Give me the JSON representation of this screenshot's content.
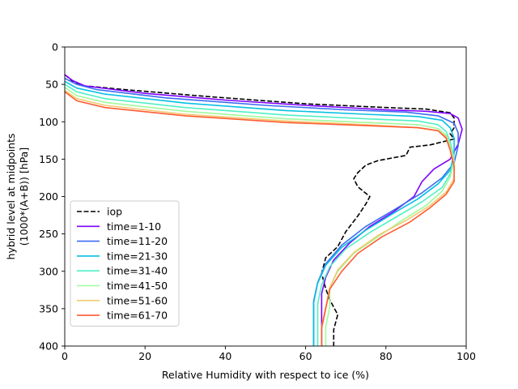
{
  "chart_data": {
    "type": "line",
    "title": "",
    "xlabel": "Relative Humidity with respect to ice (%)",
    "ylabel_line1": "hybrid level at midpoints",
    "ylabel_line2": "(1000*(A+B)) [hPa]",
    "xlim": [
      0,
      100
    ],
    "ylim": [
      400,
      0
    ],
    "y_inverted": true,
    "xticks": [
      0,
      20,
      40,
      60,
      80,
      100
    ],
    "yticks": [
      0,
      50,
      100,
      150,
      200,
      250,
      300,
      350,
      400
    ],
    "grid": false,
    "legend_position": "lower-left",
    "series": [
      {
        "name": "iop",
        "color": "#000000",
        "dash": true,
        "points": [
          [
            0,
            37
          ],
          [
            2,
            46
          ],
          [
            5,
            52
          ],
          [
            15,
            57
          ],
          [
            35,
            66
          ],
          [
            60,
            76
          ],
          [
            80,
            81
          ],
          [
            90,
            83
          ],
          [
            96,
            88
          ],
          [
            97,
            95
          ],
          [
            97,
            108
          ],
          [
            96,
            116
          ],
          [
            97,
            123
          ],
          [
            91,
            131
          ],
          [
            86,
            134
          ],
          [
            85,
            145
          ],
          [
            78,
            152
          ],
          [
            75,
            158
          ],
          [
            73,
            168
          ],
          [
            72,
            176
          ],
          [
            73,
            187
          ],
          [
            76,
            200
          ],
          [
            75,
            210
          ],
          [
            73,
            226
          ],
          [
            70,
            247
          ],
          [
            68,
            267
          ],
          [
            65,
            282
          ],
          [
            64,
            303
          ],
          [
            65,
            323
          ],
          [
            66,
            338
          ],
          [
            68,
            358
          ],
          [
            67,
            378
          ],
          [
            67,
            400
          ]
        ]
      },
      {
        "name": "time=1-10",
        "color": "#8000ff",
        "points": [
          [
            0,
            37
          ],
          [
            2,
            45
          ],
          [
            5,
            52
          ],
          [
            20,
            62
          ],
          [
            40,
            71
          ],
          [
            60,
            78
          ],
          [
            80,
            84
          ],
          [
            90,
            86
          ],
          [
            96,
            89
          ],
          [
            98,
            95
          ],
          [
            99,
            110
          ],
          [
            98,
            130
          ],
          [
            96,
            150
          ],
          [
            92,
            163
          ],
          [
            89,
            180
          ],
          [
            87,
            200
          ],
          [
            82,
            220
          ],
          [
            76,
            240
          ],
          [
            71,
            262
          ],
          [
            67,
            285
          ],
          [
            65,
            308
          ],
          [
            64,
            330
          ],
          [
            64,
            350
          ],
          [
            64,
            370
          ],
          [
            64,
            400
          ]
        ]
      },
      {
        "name": "time=11-20",
        "color": "#3d6cf3",
        "points": [
          [
            0,
            42
          ],
          [
            3,
            50
          ],
          [
            8,
            57
          ],
          [
            25,
            68
          ],
          [
            50,
            78
          ],
          [
            70,
            84
          ],
          [
            85,
            87
          ],
          [
            93,
            92
          ],
          [
            97,
            102
          ],
          [
            98,
            115
          ],
          [
            98,
            132
          ],
          [
            97,
            155
          ],
          [
            94,
            175
          ],
          [
            89,
            195
          ],
          [
            82,
            218
          ],
          [
            75,
            240
          ],
          [
            69,
            265
          ],
          [
            65,
            290
          ],
          [
            63,
            315
          ],
          [
            62,
            340
          ],
          [
            62,
            365
          ],
          [
            62,
            400
          ]
        ]
      },
      {
        "name": "time=21-30",
        "color": "#07c0e2",
        "points": [
          [
            0,
            46
          ],
          [
            3,
            55
          ],
          [
            10,
            63
          ],
          [
            30,
            75
          ],
          [
            55,
            85
          ],
          [
            75,
            90
          ],
          [
            88,
            93
          ],
          [
            94,
            98
          ],
          [
            96,
            108
          ],
          [
            97,
            122
          ],
          [
            97,
            142
          ],
          [
            96,
            165
          ],
          [
            93,
            183
          ],
          [
            88,
            203
          ],
          [
            82,
            222
          ],
          [
            75,
            245
          ],
          [
            69,
            268
          ],
          [
            65,
            292
          ],
          [
            63,
            316
          ],
          [
            62,
            342
          ],
          [
            62,
            368
          ],
          [
            62,
            400
          ]
        ]
      },
      {
        "name": "time=31-40",
        "color": "#4ff0c5",
        "points": [
          [
            0,
            50
          ],
          [
            3,
            60
          ],
          [
            10,
            69
          ],
          [
            30,
            81
          ],
          [
            55,
            91
          ],
          [
            75,
            96
          ],
          [
            88,
            99
          ],
          [
            93,
            104
          ],
          [
            95,
            113
          ],
          [
            96,
            127
          ],
          [
            97,
            148
          ],
          [
            96,
            170
          ],
          [
            94,
            188
          ],
          [
            89,
            207
          ],
          [
            83,
            226
          ],
          [
            76,
            248
          ],
          [
            70,
            270
          ],
          [
            66,
            294
          ],
          [
            64,
            318
          ],
          [
            63,
            344
          ],
          [
            63,
            370
          ],
          [
            63,
            400
          ]
        ]
      },
      {
        "name": "time=41-50",
        "color": "#a0f99c",
        "points": [
          [
            0,
            54
          ],
          [
            3,
            65
          ],
          [
            10,
            74
          ],
          [
            30,
            86
          ],
          [
            55,
            96
          ],
          [
            75,
            101
          ],
          [
            88,
            104
          ],
          [
            93,
            109
          ],
          [
            95,
            118
          ],
          [
            96,
            132
          ],
          [
            97,
            152
          ],
          [
            96,
            174
          ],
          [
            94,
            193
          ],
          [
            90,
            212
          ],
          [
            84,
            232
          ],
          [
            78,
            254
          ],
          [
            72,
            276
          ],
          [
            68,
            300
          ],
          [
            66,
            322
          ],
          [
            66,
            348
          ],
          [
            65,
            374
          ],
          [
            65,
            400
          ]
        ]
      },
      {
        "name": "time=51-60",
        "color": "#f1c970",
        "points": [
          [
            0,
            58
          ],
          [
            3,
            69
          ],
          [
            10,
            78
          ],
          [
            30,
            90
          ],
          [
            55,
            99
          ],
          [
            75,
            104
          ],
          [
            88,
            108
          ],
          [
            93,
            112
          ],
          [
            95,
            120
          ],
          [
            96,
            136
          ],
          [
            97,
            156
          ],
          [
            97,
            176
          ],
          [
            95,
            194
          ],
          [
            91,
            212
          ],
          [
            85,
            232
          ],
          [
            78,
            252
          ],
          [
            72,
            275
          ],
          [
            68,
            298
          ],
          [
            66,
            322
          ],
          [
            65,
            348
          ],
          [
            64,
            374
          ],
          [
            64,
            400
          ]
        ]
      },
      {
        "name": "time=61-70",
        "color": "#ff5b32",
        "points": [
          [
            0,
            60
          ],
          [
            3,
            72
          ],
          [
            10,
            81
          ],
          [
            30,
            92
          ],
          [
            55,
            101
          ],
          [
            75,
            105
          ],
          [
            88,
            108
          ],
          [
            93,
            112
          ],
          [
            95,
            122
          ],
          [
            96,
            138
          ],
          [
            97,
            160
          ],
          [
            97,
            180
          ],
          [
            95,
            197
          ],
          [
            91,
            215
          ],
          [
            86,
            234
          ],
          [
            79,
            254
          ],
          [
            73,
            276
          ],
          [
            69,
            300
          ],
          [
            66,
            324
          ],
          [
            65,
            350
          ],
          [
            64,
            376
          ],
          [
            64,
            400
          ]
        ]
      }
    ]
  }
}
